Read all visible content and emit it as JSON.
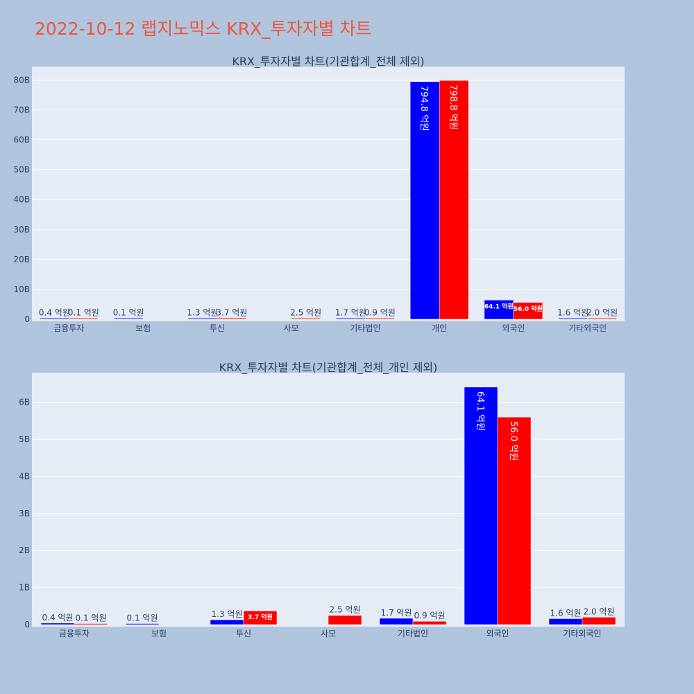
{
  "page_title": "2022-10-12 랩지노믹스 KRX_투자자별 차트",
  "colors": {
    "series_a": "#0000ff",
    "series_b": "#ff0000",
    "plot_bg": "#e5ecf6",
    "page_bg": "#b0c4de",
    "title": "#ef553b"
  },
  "chart_data": [
    {
      "type": "bar",
      "title": "KRX_투자자별 차트(기관합계_전체 제외)",
      "categories": [
        "금융투자",
        "보험",
        "투신",
        "사모",
        "기타법인",
        "개인",
        "외국인",
        "기타외국인"
      ],
      "series": [
        {
          "color": "#0000ff",
          "values": [
            0.04,
            0.01,
            0.13,
            0,
            0.17,
            79.48,
            6.41,
            0.16
          ],
          "labels": [
            "0.4 억원",
            "0.1 억원",
            "1.3 억원",
            "",
            "1.7 억원",
            "794.8 억원",
            "64.1 억원",
            "1.6 억원"
          ]
        },
        {
          "color": "#ff0000",
          "values": [
            0.01,
            0,
            0.37,
            0.25,
            0.09,
            79.88,
            5.6,
            0.2
          ],
          "labels": [
            "0.1 억원",
            "",
            "3.7 억원",
            "2.5 억원",
            "0.9 억원",
            "798.8 억원",
            "56.0 억원",
            "2.0 억원"
          ]
        }
      ],
      "yticks": [
        0,
        10,
        20,
        30,
        40,
        50,
        60,
        70,
        80
      ],
      "ytick_labels": [
        "0",
        "10B",
        "20B",
        "30B",
        "40B",
        "50B",
        "60B",
        "70B",
        "80B"
      ],
      "ylim": [
        0,
        84.5
      ],
      "grid": true,
      "legend": "none"
    },
    {
      "type": "bar",
      "title": "KRX_투자자별 차트(기관합계_전체_개인 제외)",
      "categories": [
        "금융투자",
        "보험",
        "투신",
        "사모",
        "기타법인",
        "외국인",
        "기타외국인"
      ],
      "series": [
        {
          "color": "#0000ff",
          "values": [
            0.04,
            0.01,
            0.13,
            0,
            0.17,
            6.41,
            0.16
          ],
          "labels": [
            "0.4 억원",
            "0.1 억원",
            "1.3 억원",
            "",
            "1.7 억원",
            "64.1 억원",
            "1.6 억원"
          ]
        },
        {
          "color": "#ff0000",
          "values": [
            0.01,
            0,
            0.37,
            0.25,
            0.09,
            5.6,
            0.2
          ],
          "labels": [
            "0.1 억원",
            "",
            "3.7 억원",
            "2.5 억원",
            "0.9 억원",
            "56.0 억원",
            "2.0 억원"
          ]
        }
      ],
      "yticks": [
        0,
        1,
        2,
        3,
        4,
        5,
        6
      ],
      "ytick_labels": [
        "0",
        "1B",
        "2B",
        "3B",
        "4B",
        "5B",
        "6B"
      ],
      "ylim": [
        0,
        6.8
      ],
      "grid": true,
      "legend": "none"
    }
  ]
}
